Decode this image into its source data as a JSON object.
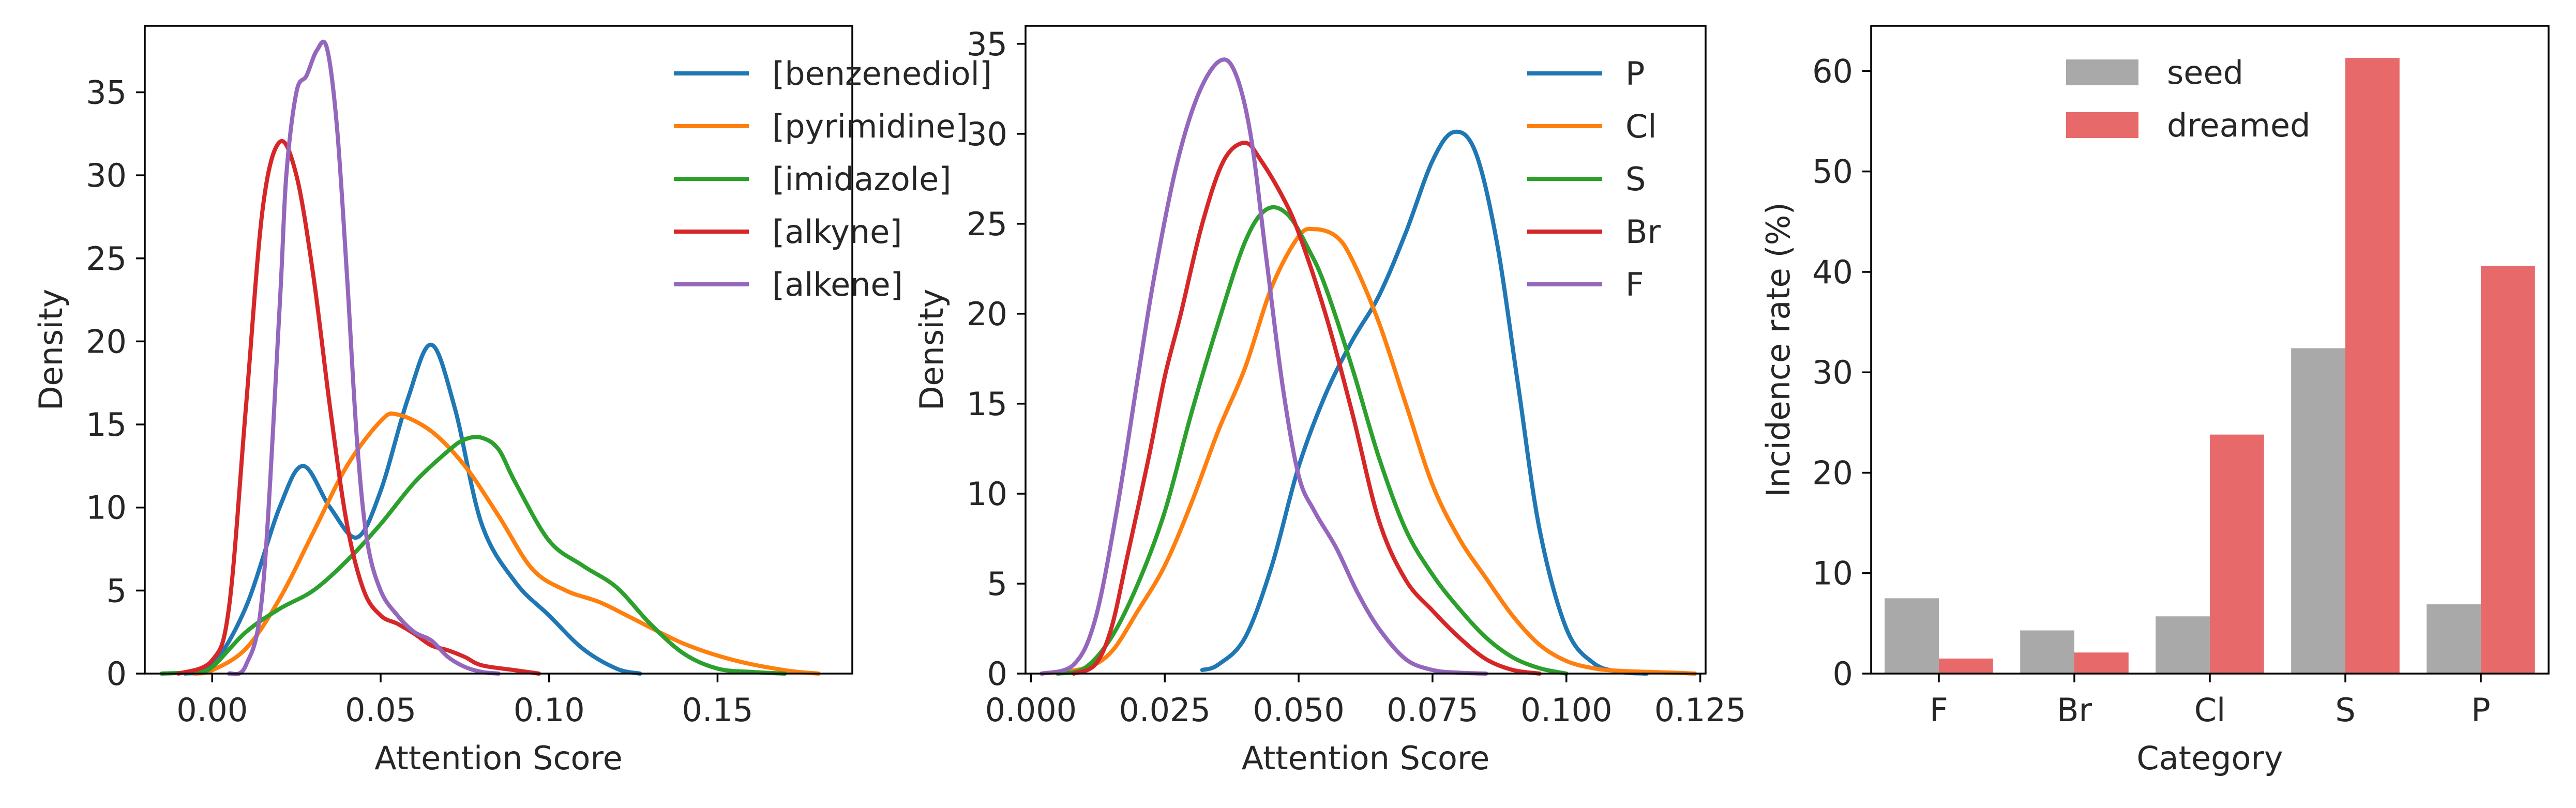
{
  "chart_data": [
    {
      "type": "line",
      "subtype": "density",
      "xlabel": "Attention Score",
      "ylabel": "Density",
      "xlim": [
        -0.02,
        0.19
      ],
      "ylim": [
        0,
        39
      ],
      "xticks": [
        0.0,
        0.05,
        0.1,
        0.15
      ],
      "xtick_labels": [
        "0.00",
        "0.05",
        "0.10",
        "0.15"
      ],
      "yticks": [
        0,
        5,
        10,
        15,
        20,
        25,
        30,
        35
      ],
      "ytick_labels": [
        "0",
        "5",
        "10",
        "15",
        "20",
        "25",
        "30",
        "35"
      ],
      "legend_position": "top-right",
      "grid": false,
      "series": [
        {
          "name": "[benzenediol]",
          "color": "#1f77b4",
          "x": [
            -0.008,
            0.0,
            0.01,
            0.02,
            0.027,
            0.035,
            0.043,
            0.05,
            0.058,
            0.065,
            0.072,
            0.08,
            0.09,
            0.1,
            0.11,
            0.12,
            0.127
          ],
          "y": [
            0,
            0.5,
            4,
            10,
            12.5,
            10,
            8.2,
            11,
            16.5,
            19.8,
            16,
            9,
            5.5,
            3.5,
            1.5,
            0.3,
            0
          ]
        },
        {
          "name": "[pyrimidine]",
          "color": "#ff7f0e",
          "x": [
            -0.005,
            0.0,
            0.01,
            0.02,
            0.03,
            0.04,
            0.05,
            0.055,
            0.065,
            0.075,
            0.085,
            0.095,
            0.105,
            0.115,
            0.125,
            0.14,
            0.155,
            0.17,
            0.18
          ],
          "y": [
            0,
            0.2,
            1.5,
            4.5,
            8.5,
            12.5,
            15.2,
            15.6,
            14.6,
            12.5,
            9.5,
            6.3,
            5,
            4.3,
            3.3,
            1.8,
            0.8,
            0.2,
            0
          ]
        },
        {
          "name": "[imidazole]",
          "color": "#2ca02c",
          "x": [
            -0.015,
            -0.005,
            0.0,
            0.01,
            0.02,
            0.03,
            0.04,
            0.05,
            0.06,
            0.07,
            0.075,
            0.08,
            0.085,
            0.09,
            0.1,
            0.11,
            0.12,
            0.13,
            0.14,
            0.15,
            0.16,
            0.17
          ],
          "y": [
            0,
            0.1,
            0.4,
            2.5,
            3.9,
            5,
            6.8,
            9,
            11.5,
            13.4,
            14.1,
            14.2,
            13.5,
            11.5,
            8,
            6.5,
            5.2,
            3,
            1.2,
            0.3,
            0.1,
            0
          ]
        },
        {
          "name": "[alkyne]",
          "color": "#d62728",
          "x": [
            -0.01,
            0.0,
            0.005,
            0.01,
            0.015,
            0.02,
            0.025,
            0.03,
            0.035,
            0.04,
            0.045,
            0.05,
            0.055,
            0.06,
            0.065,
            0.07,
            0.075,
            0.08,
            0.09,
            0.097
          ],
          "y": [
            0,
            0.8,
            4,
            16,
            28,
            32,
            30,
            24,
            16,
            9,
            5,
            3.5,
            3,
            2.4,
            1.7,
            1.4,
            1,
            0.5,
            0.2,
            0
          ]
        },
        {
          "name": "[alkene]",
          "color": "#9467bd",
          "x": [
            0.005,
            0.01,
            0.015,
            0.02,
            0.022,
            0.025,
            0.028,
            0.031,
            0.034,
            0.037,
            0.04,
            0.043,
            0.046,
            0.05,
            0.055,
            0.06,
            0.065,
            0.07,
            0.075,
            0.08,
            0.085
          ],
          "y": [
            0,
            0.5,
            5,
            22,
            30,
            35,
            36,
            37.5,
            37.7,
            33,
            24,
            14,
            8,
            5,
            3.5,
            2.5,
            2,
            1,
            0.4,
            0.1,
            0
          ]
        }
      ]
    },
    {
      "type": "line",
      "subtype": "density",
      "xlabel": "Attention Score",
      "ylabel": "Density",
      "xlim": [
        -0.001,
        0.126
      ],
      "ylim": [
        0,
        36
      ],
      "xticks": [
        0.0,
        0.025,
        0.05,
        0.075,
        0.1,
        0.125
      ],
      "xtick_labels": [
        "0.000",
        "0.025",
        "0.050",
        "0.075",
        "0.100",
        "0.125"
      ],
      "yticks": [
        0,
        5,
        10,
        15,
        20,
        25,
        30,
        35
      ],
      "ytick_labels": [
        "0",
        "5",
        "10",
        "15",
        "20",
        "25",
        "30",
        "35"
      ],
      "legend_position": "top-right",
      "grid": false,
      "series": [
        {
          "name": "P",
          "color": "#1f77b4",
          "x": [
            0.032,
            0.035,
            0.04,
            0.045,
            0.05,
            0.055,
            0.06,
            0.065,
            0.07,
            0.075,
            0.079,
            0.083,
            0.087,
            0.091,
            0.095,
            0.1,
            0.105,
            0.11,
            0.115
          ],
          "y": [
            0.2,
            0.5,
            2,
            6,
            11.5,
            15.5,
            18.5,
            21,
            24.5,
            28.5,
            30.1,
            29,
            24,
            16,
            8,
            2.5,
            0.6,
            0.1,
            0
          ]
        },
        {
          "name": "Cl",
          "color": "#ff7f0e",
          "x": [
            0.002,
            0.01,
            0.015,
            0.02,
            0.025,
            0.03,
            0.035,
            0.04,
            0.045,
            0.05,
            0.053,
            0.057,
            0.06,
            0.065,
            0.07,
            0.075,
            0.08,
            0.085,
            0.09,
            0.095,
            0.1,
            0.105,
            0.11,
            0.12,
            0.124
          ],
          "y": [
            0,
            0.3,
            1.2,
            3.5,
            6,
            9.5,
            13.5,
            17,
            21.5,
            24.3,
            24.7,
            24.3,
            23,
            19.5,
            15,
            10.5,
            7.5,
            5.3,
            3.2,
            1.6,
            0.7,
            0.3,
            0.15,
            0.05,
            0
          ]
        },
        {
          "name": "S",
          "color": "#2ca02c",
          "x": [
            0.005,
            0.01,
            0.015,
            0.02,
            0.025,
            0.03,
            0.035,
            0.04,
            0.044,
            0.048,
            0.052,
            0.055,
            0.06,
            0.065,
            0.07,
            0.075,
            0.08,
            0.085,
            0.09,
            0.095,
            0.1
          ],
          "y": [
            0,
            0.3,
            2,
            5,
            9,
            14.5,
            19.5,
            24,
            25.8,
            25.5,
            23.5,
            21.5,
            17,
            12,
            8,
            5.5,
            3.6,
            2,
            0.9,
            0.3,
            0
          ]
        },
        {
          "name": "Br",
          "color": "#d62728",
          "x": [
            0.008,
            0.012,
            0.015,
            0.018,
            0.022,
            0.025,
            0.028,
            0.032,
            0.036,
            0.04,
            0.043,
            0.047,
            0.05,
            0.055,
            0.06,
            0.065,
            0.07,
            0.075,
            0.08,
            0.085,
            0.09,
            0.095
          ],
          "y": [
            0,
            0.5,
            2.5,
            6.5,
            12,
            16.5,
            20,
            25,
            28.5,
            29.5,
            28.5,
            26.5,
            24.5,
            20,
            14.5,
            8.5,
            5.2,
            3.5,
            2,
            0.8,
            0.2,
            0
          ]
        },
        {
          "name": "F",
          "color": "#9467bd",
          "x": [
            0.002,
            0.008,
            0.012,
            0.016,
            0.02,
            0.023,
            0.027,
            0.031,
            0.035,
            0.038,
            0.041,
            0.044,
            0.047,
            0.05,
            0.053,
            0.057,
            0.061,
            0.065,
            0.07,
            0.075,
            0.08,
            0.085
          ],
          "y": [
            0,
            0.5,
            3,
            9,
            16.5,
            22,
            28,
            32,
            34,
            33.5,
            30,
            23,
            16,
            11,
            9,
            7,
            4.5,
            2.5,
            0.8,
            0.2,
            0.05,
            0
          ]
        }
      ]
    },
    {
      "type": "bar",
      "categories": [
        "F",
        "Br",
        "Cl",
        "S",
        "P"
      ],
      "xlabel": "Category",
      "ylabel": "Incidence rate (%)",
      "ylim": [
        0,
        64.5
      ],
      "yticks": [
        0,
        10,
        20,
        30,
        40,
        50,
        60
      ],
      "ytick_labels": [
        "0",
        "10",
        "20",
        "30",
        "40",
        "50",
        "60"
      ],
      "legend_position": "upper-center",
      "grid": false,
      "series": [
        {
          "name": "seed",
          "color": "#a9a9a9",
          "values": [
            7.5,
            4.3,
            5.7,
            32.4,
            6.9
          ]
        },
        {
          "name": "dreamed",
          "color": "#e8696a",
          "values": [
            1.5,
            2.1,
            23.8,
            61.3,
            40.6
          ]
        }
      ]
    }
  ]
}
